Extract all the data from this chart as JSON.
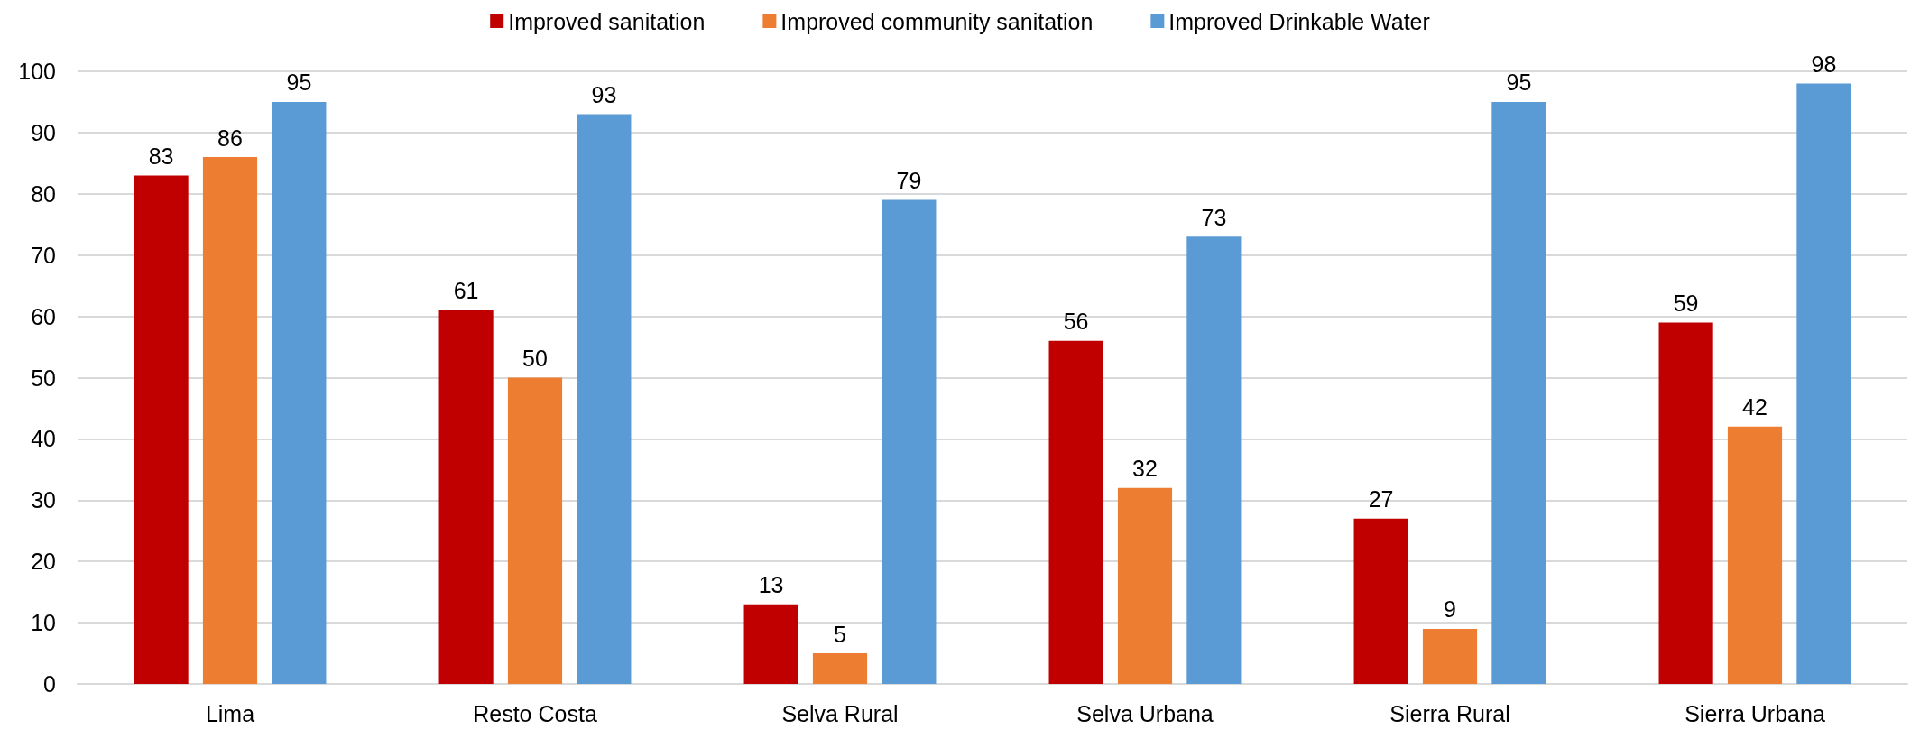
{
  "chart_data": {
    "type": "bar",
    "categories": [
      "Lima",
      "Resto Costa",
      "Selva Rural",
      "Selva Urbana",
      "Sierra Rural",
      "Sierra Urbana"
    ],
    "series": [
      {
        "name": "Improved sanitation",
        "color": "#c00000",
        "values": [
          83,
          61,
          13,
          56,
          27,
          59
        ]
      },
      {
        "name": "Improved community sanitation",
        "color": "#ed7d31",
        "values": [
          86,
          50,
          5,
          32,
          9,
          42
        ]
      },
      {
        "name": "Improved Drinkable Water",
        "color": "#5b9bd5",
        "values": [
          95,
          93,
          79,
          73,
          95,
          98
        ]
      }
    ],
    "ylim": [
      0,
      100
    ],
    "yticks": [
      0,
      10,
      20,
      30,
      40,
      50,
      60,
      70,
      80,
      90,
      100
    ],
    "grid": "y",
    "legend": "top",
    "data_labels": true
  }
}
